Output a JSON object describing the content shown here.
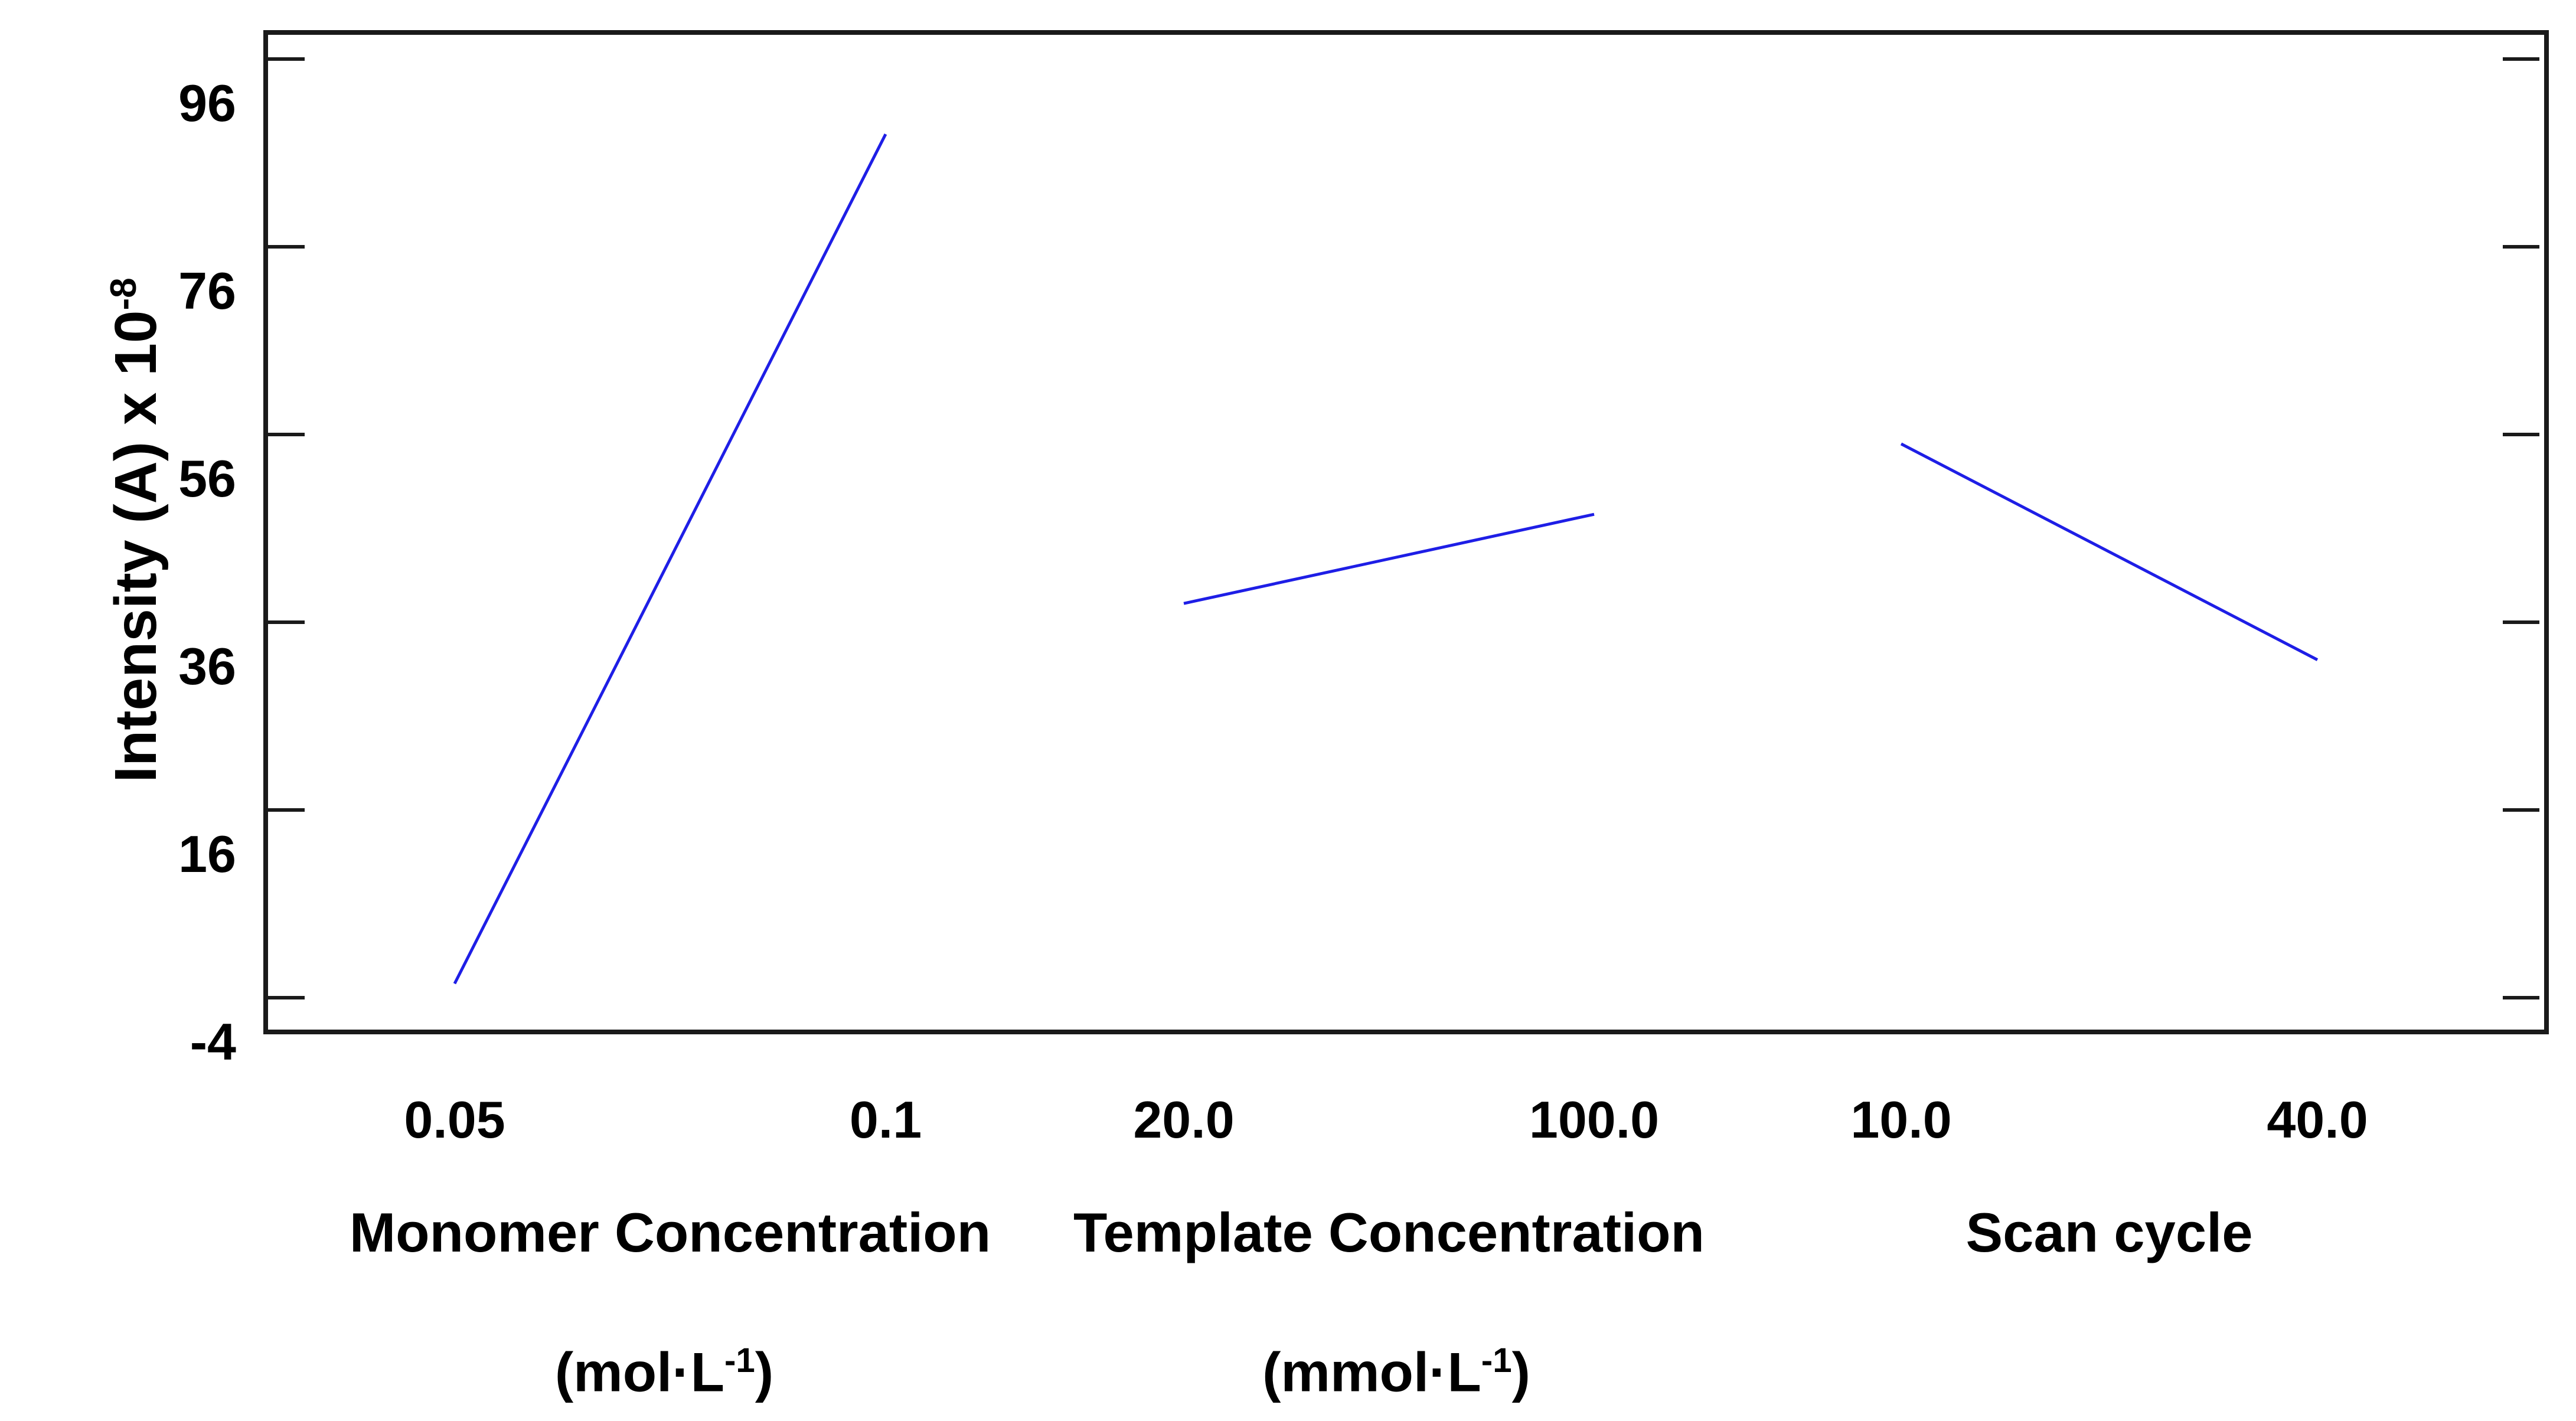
{
  "chart_data": {
    "type": "line",
    "title": "",
    "ylabel": {
      "base": "Intensity (A) x 10",
      "sup": "-8"
    },
    "yticks": {
      "values": [
        96,
        76,
        56,
        36,
        16,
        -4
      ],
      "labels": [
        "96",
        "76",
        "56",
        "36",
        "16",
        "-4"
      ]
    },
    "ylim": [
      -7,
      99
    ],
    "grid": false,
    "line_color": "#1e1ee6",
    "frame_color": "#1a1a1a",
    "panels": [
      {
        "name": "Monomer Concentration",
        "unit_open": "(mol·L",
        "unit_sup": "-1",
        "unit_close": ")",
        "x": [
          0.05,
          0.1
        ],
        "x_labels": [
          "0.05",
          "0.1"
        ],
        "y": [
          -2.5,
          88
        ]
      },
      {
        "name": "Template Concentration",
        "unit_open": "(mmol·L",
        "unit_sup": "-1",
        "unit_close": ")",
        "x": [
          20.0,
          100.0
        ],
        "x_labels": [
          "20.0",
          "100.0"
        ],
        "y": [
          38,
          47.5
        ]
      },
      {
        "name": "Scan cycle",
        "x": [
          10.0,
          40.0
        ],
        "x_labels": [
          "10.0",
          "40.0"
        ],
        "y": [
          55,
          32
        ]
      }
    ]
  }
}
